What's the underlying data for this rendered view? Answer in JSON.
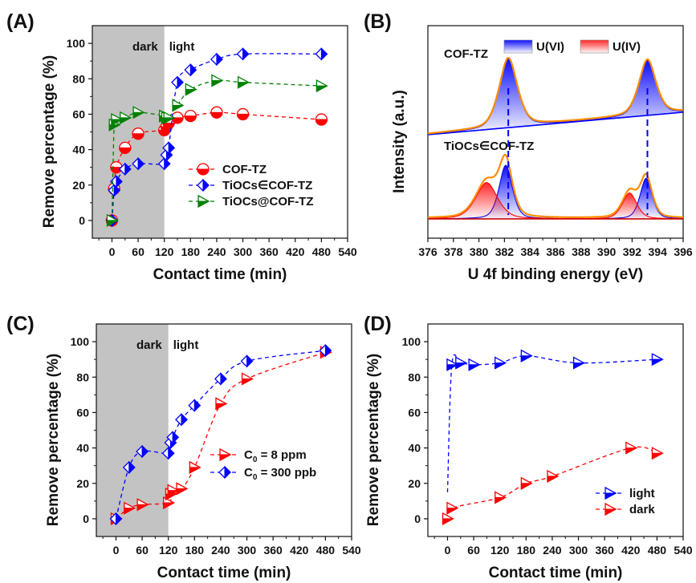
{
  "chart_data": [
    {
      "id": "A",
      "panel_label": "(A)",
      "type": "line",
      "xlabel": "Contact time (min)",
      "ylabel": "Remove percentage (%)",
      "xlim": [
        -45,
        540
      ],
      "ylim": [
        -10,
        110
      ],
      "xticks": [
        0,
        60,
        120,
        180,
        240,
        300,
        360,
        420,
        480,
        540
      ],
      "yticks": [
        0,
        20,
        40,
        60,
        80,
        100
      ],
      "shaded_region": {
        "from": -45,
        "to": 120,
        "color": "#c3c3c3"
      },
      "region_labels": {
        "dark": "dark",
        "light": "light"
      },
      "legend_position": "center-right",
      "series": [
        {
          "name": "COF-TZ",
          "marker": "circle",
          "color": "#ff0000",
          "x": [
            0,
            5,
            10,
            30,
            60,
            120,
            125,
            130,
            150,
            180,
            240,
            300,
            480
          ],
          "y": [
            0,
            18,
            30,
            41,
            49,
            51,
            53,
            55,
            58,
            59,
            61,
            60,
            57
          ]
        },
        {
          "name": "TiOCs∈COF-TZ",
          "marker": "diamond",
          "color": "#0000ff",
          "x": [
            0,
            5,
            10,
            30,
            60,
            120,
            125,
            130,
            150,
            180,
            240,
            300,
            480
          ],
          "y": [
            0,
            17,
            22,
            29,
            32,
            32,
            37,
            41,
            78,
            85,
            91,
            94,
            94
          ]
        },
        {
          "name": "TiOCs@COF-TZ",
          "marker": "triangle",
          "color": "#008000",
          "x": [
            0,
            5,
            10,
            30,
            60,
            120,
            125,
            130,
            150,
            180,
            240,
            300,
            480
          ],
          "y": [
            0,
            54,
            57,
            58,
            61,
            59,
            58,
            58,
            65,
            74,
            79,
            78,
            76
          ]
        }
      ]
    },
    {
      "id": "B",
      "panel_label": "(B)",
      "type": "area",
      "xlabel": "U 4f  binding energy (eV)",
      "ylabel": "Intensity (a.u.)",
      "xlim": [
        376,
        396
      ],
      "xticks": [
        376,
        378,
        380,
        382,
        384,
        386,
        388,
        390,
        392,
        394,
        396
      ],
      "legend": [
        {
          "label": "U(VI)",
          "color": "#0000ff"
        },
        {
          "label": "U(IV)",
          "color": "#ff0000"
        }
      ],
      "envelope_color": "#ff8c00",
      "reference_lines_ev": [
        382.3,
        393.2
      ],
      "spectra": [
        {
          "name": "COF-TZ",
          "peaks": [
            {
              "species": "U(VI)",
              "center": 382.3,
              "height": 1.0,
              "width": 0.75
            },
            {
              "species": "U(VI)",
              "center": 393.2,
              "height": 0.8,
              "width": 0.7
            }
          ]
        },
        {
          "name": "TiOCs∈COF-TZ",
          "peaks": [
            {
              "species": "U(VI)",
              "center": 382.1,
              "height": 0.62,
              "width": 0.55
            },
            {
              "species": "U(VI)",
              "center": 393.1,
              "height": 0.47,
              "width": 0.5
            },
            {
              "species": "U(IV)",
              "center": 380.6,
              "height": 0.42,
              "width": 0.9
            },
            {
              "species": "U(IV)",
              "center": 391.8,
              "height": 0.3,
              "width": 0.6
            }
          ]
        }
      ]
    },
    {
      "id": "C",
      "panel_label": "(C)",
      "type": "line",
      "xlabel": "Contact time (min)",
      "ylabel": "Remove percentage (%)",
      "xlim": [
        -45,
        540
      ],
      "ylim": [
        -10,
        110
      ],
      "xticks": [
        0,
        60,
        120,
        180,
        240,
        300,
        360,
        420,
        480,
        540
      ],
      "yticks": [
        0,
        20,
        40,
        60,
        80,
        100
      ],
      "shaded_region": {
        "from": -45,
        "to": 120,
        "color": "#c3c3c3"
      },
      "region_labels": {
        "dark": "dark",
        "light": "light"
      },
      "legend_position": "center-right",
      "series": [
        {
          "name": "C0 = 8 ppm",
          "label_main": "C",
          "label_sub": "0",
          "label_rest": " = 8 ppm",
          "marker": "triangle",
          "color": "#ff0000",
          "x": [
            0,
            30,
            60,
            120,
            125,
            130,
            150,
            180,
            240,
            300,
            480
          ],
          "y": [
            0,
            6,
            8,
            9,
            14,
            16,
            17,
            29,
            65,
            79,
            94
          ]
        },
        {
          "name": "C0 = 300 ppb",
          "label_main": "C",
          "label_sub": "0",
          "label_rest": " = 300 ppb",
          "marker": "diamond",
          "color": "#0000ff",
          "x": [
            0,
            30,
            60,
            120,
            125,
            130,
            150,
            180,
            240,
            300,
            480
          ],
          "y": [
            0,
            29,
            38,
            37,
            43,
            46,
            56,
            64,
            79,
            89,
            95
          ]
        }
      ]
    },
    {
      "id": "D",
      "panel_label": "(D)",
      "type": "line",
      "xlabel": "Contact time (min)",
      "ylabel": "Remove percentage (%)",
      "xlim": [
        -45,
        540
      ],
      "ylim": [
        -10,
        110
      ],
      "xticks": [
        0,
        60,
        120,
        180,
        240,
        300,
        360,
        420,
        480,
        540
      ],
      "yticks": [
        0,
        20,
        40,
        60,
        80,
        100
      ],
      "legend_position": "bottom-right",
      "series": [
        {
          "name": "light",
          "marker": "triangle",
          "color": "#0000ff",
          "x": [
            0,
            10,
            30,
            60,
            120,
            180,
            300,
            480
          ],
          "y": [
            15,
            87,
            88,
            87,
            88,
            92,
            88,
            90
          ]
        },
        {
          "name": "dark",
          "marker": "triangle",
          "color": "#ff0000",
          "x": [
            0,
            10,
            120,
            180,
            240,
            420,
            480
          ],
          "y": [
            0,
            6,
            12,
            20,
            24,
            40,
            37
          ]
        }
      ]
    }
  ]
}
